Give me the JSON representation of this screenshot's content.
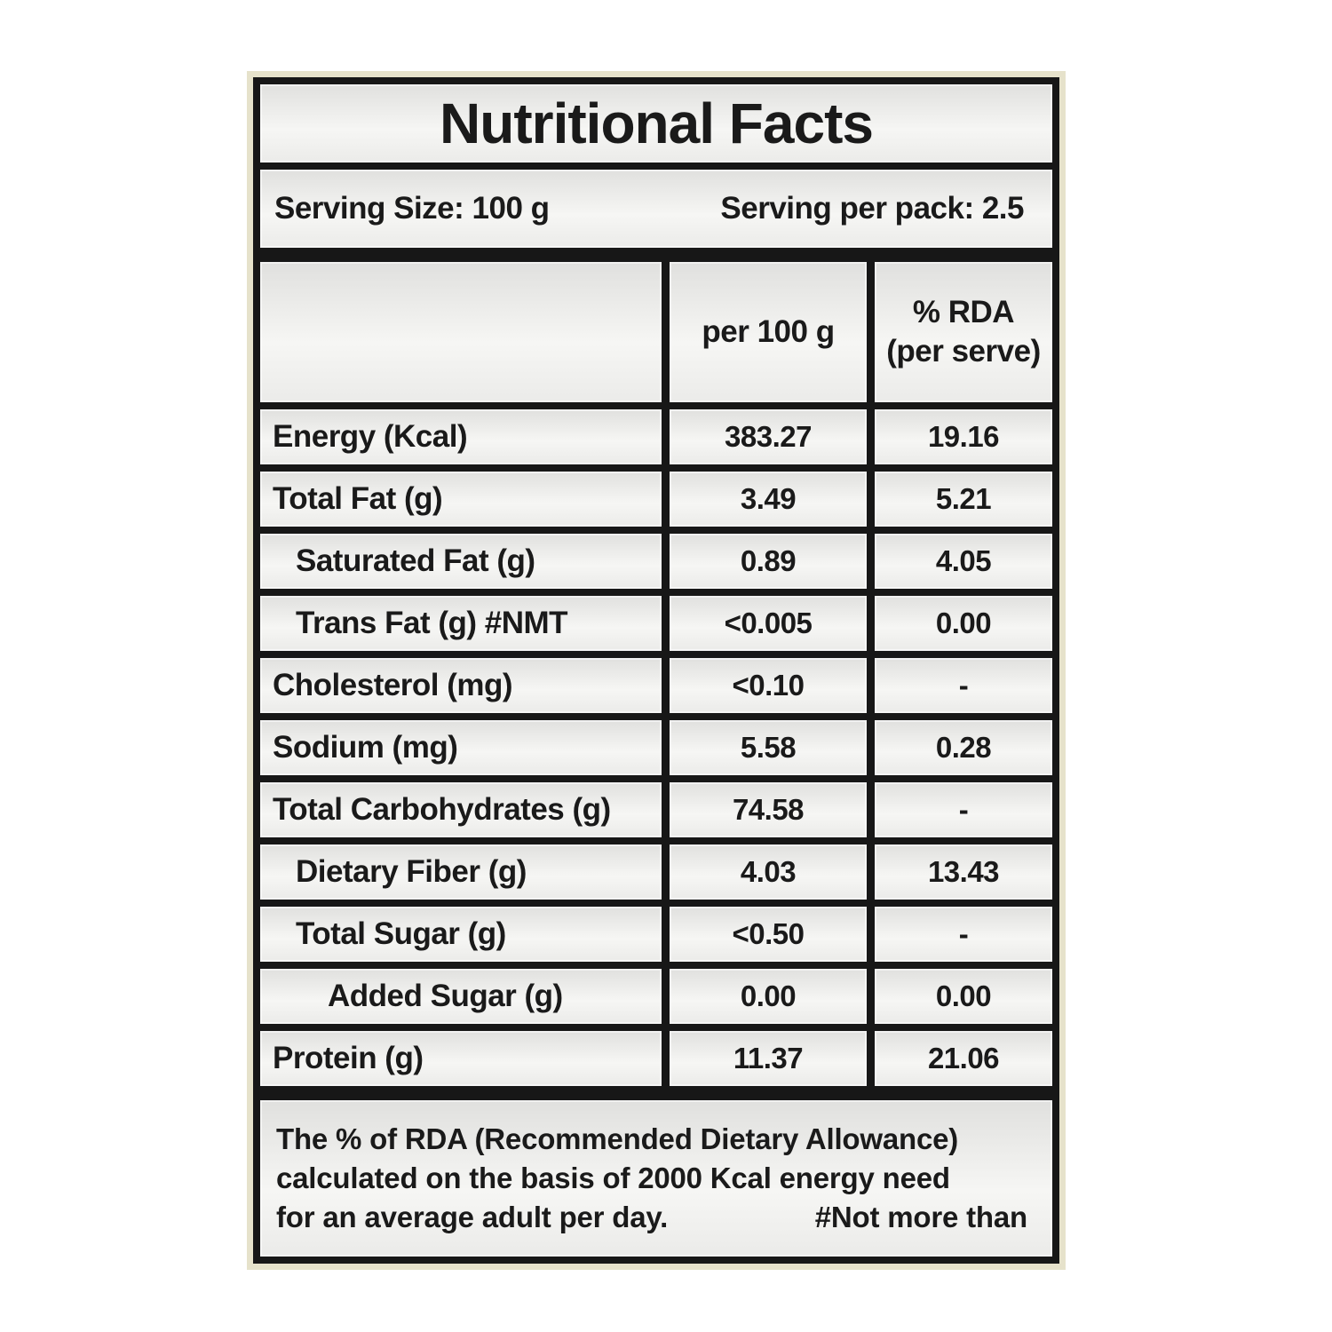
{
  "label": {
    "title": "Nutritional Facts",
    "serving_size": "Serving Size: 100 g",
    "serving_per_pack": "Serving per pack: 2.5",
    "header": {
      "nutrient": "",
      "per_100g": "per 100 g",
      "rda_line1": "% RDA",
      "rda_line2": "(per serve)"
    },
    "rows": [
      {
        "name": "Energy (Kcal)",
        "per100": "383.27",
        "rda": "19.16"
      },
      {
        "name": "Total Fat (g)",
        "per100": "3.49",
        "rda": "5.21"
      },
      {
        "name": "Saturated Fat (g)",
        "per100": "0.89",
        "rda": "4.05"
      },
      {
        "name": "Trans Fat (g) #NMT",
        "per100": "<0.005",
        "rda": "0.00"
      },
      {
        "name": "Cholesterol (mg)",
        "per100": "<0.10",
        "rda": "-"
      },
      {
        "name": "Sodium (mg)",
        "per100": "5.58",
        "rda": "0.28"
      },
      {
        "name": "Total Carbohydrates (g)",
        "per100": "74.58",
        "rda": "-"
      },
      {
        "name": "Dietary Fiber (g)",
        "per100": "4.03",
        "rda": "13.43"
      },
      {
        "name": "Total Sugar (g)",
        "per100": "<0.50",
        "rda": "-"
      },
      {
        "name": "Added Sugar (g)",
        "per100": "0.00",
        "rda": "0.00"
      },
      {
        "name": "Protein (g)",
        "per100": "11.37",
        "rda": "21.06"
      }
    ],
    "footnote": {
      "line1": "The % of RDA (Recommended Dietary Allowance)",
      "line2": "calculated on the basis of 2000 Kcal energy need",
      "line3": "for an average adult per day.",
      "note": "#Not more than"
    },
    "colors": {
      "frame_cream": "#E6E2CB",
      "border_black": "#171717",
      "cell_gray": "#EDEDEB",
      "text": "#1A1A1A"
    }
  }
}
